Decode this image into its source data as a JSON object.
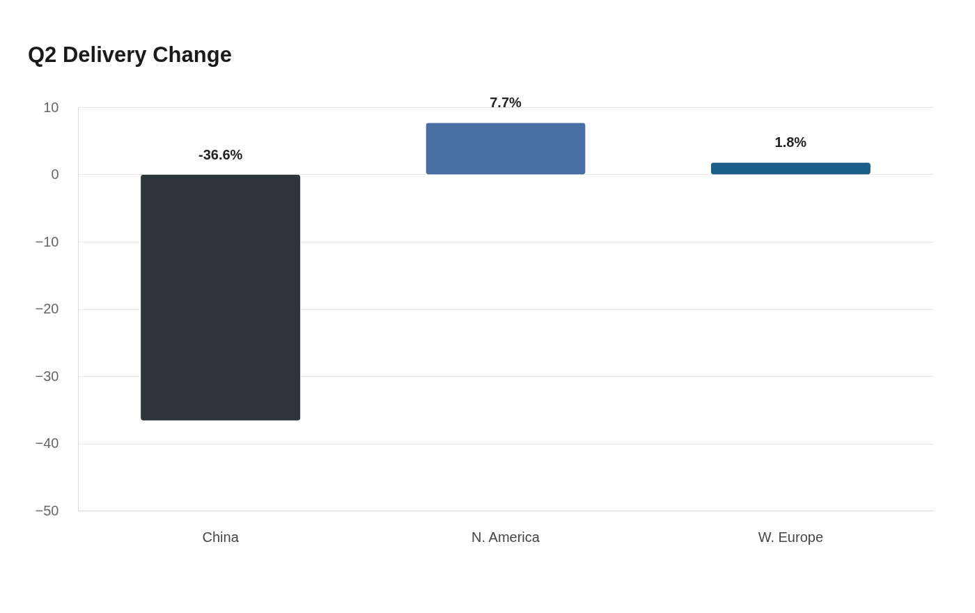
{
  "chart_data": {
    "type": "bar",
    "title": "Q2 Delivery Change",
    "categories": [
      "China",
      "N. America",
      "W. Europe"
    ],
    "values": [
      -36.6,
      7.7,
      1.8
    ],
    "colors": [
      "#2e3538",
      "#4a6fa5",
      "#1a5f8a"
    ],
    "value_labels": [
      "-36.6%",
      "7.7%",
      "1.8%"
    ],
    "ylim": [
      -50,
      10
    ],
    "yticks": [
      -50,
      -40,
      -30,
      -20,
      -10,
      0,
      10
    ],
    "grid": "y",
    "legend": false
  }
}
